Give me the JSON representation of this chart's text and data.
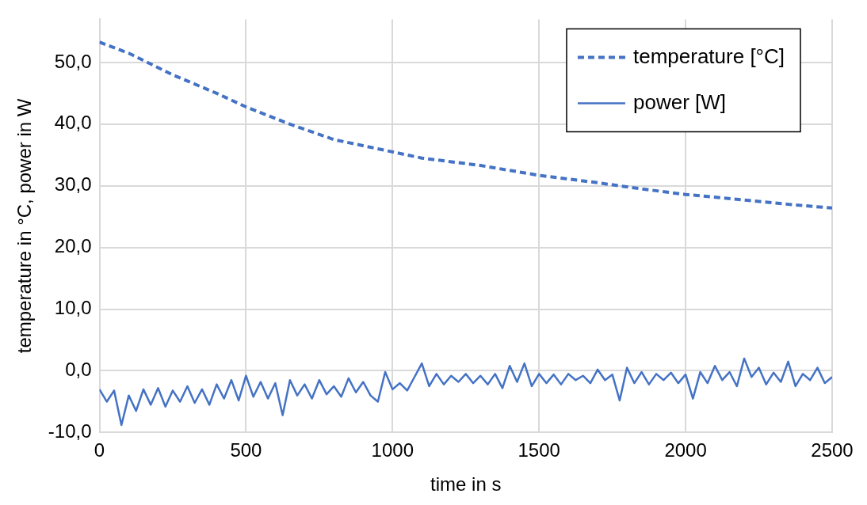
{
  "chart_data": {
    "type": "line",
    "xlabel": "time in s",
    "ylabel": "temperature in °C, power in W",
    "xlim": [
      0,
      2500
    ],
    "xticks": [
      0,
      500,
      1000,
      1500,
      2000,
      2500
    ],
    "ylim": [
      -10,
      57
    ],
    "yticks": [
      {
        "value": -10,
        "label": "-10,0"
      },
      {
        "value": 0,
        "label": "0,0"
      },
      {
        "value": 10,
        "label": "10,0"
      },
      {
        "value": 20,
        "label": "20,0"
      },
      {
        "value": 30,
        "label": "30,0"
      },
      {
        "value": 40,
        "label": "40,0"
      },
      {
        "value": 50,
        "label": "50,0"
      }
    ],
    "grid": true,
    "legend": "top right",
    "marker": "none",
    "series": [
      {
        "name": "temperature [°C]",
        "color": "#4472c4",
        "line_style": "dashed",
        "x": [
          0,
          100,
          250,
          400,
          500,
          650,
          800,
          1000,
          1100,
          1300,
          1500,
          1700,
          1850,
          2000,
          2200,
          2350,
          2500
        ],
        "values": [
          53.3,
          51.5,
          48.0,
          45.0,
          42.8,
          40.0,
          37.5,
          35.5,
          34.5,
          33.3,
          31.7,
          30.5,
          29.5,
          28.6,
          27.7,
          27.0,
          26.4
        ]
      },
      {
        "name": "power [W]",
        "color": "#4472c4",
        "line_style": "solid",
        "x": [
          0,
          25,
          50,
          75,
          100,
          125,
          150,
          175,
          200,
          225,
          250,
          275,
          300,
          325,
          350,
          375,
          400,
          425,
          450,
          475,
          500,
          525,
          550,
          575,
          600,
          625,
          650,
          675,
          700,
          725,
          750,
          775,
          800,
          825,
          850,
          875,
          900,
          925,
          950,
          975,
          1000,
          1025,
          1050,
          1075,
          1100,
          1125,
          1150,
          1175,
          1200,
          1225,
          1250,
          1275,
          1300,
          1325,
          1350,
          1375,
          1400,
          1425,
          1450,
          1475,
          1500,
          1525,
          1550,
          1575,
          1600,
          1625,
          1650,
          1675,
          1700,
          1725,
          1750,
          1775,
          1800,
          1825,
          1850,
          1875,
          1900,
          1925,
          1950,
          1975,
          2000,
          2025,
          2050,
          2075,
          2100,
          2125,
          2150,
          2175,
          2200,
          2225,
          2250,
          2275,
          2300,
          2325,
          2350,
          2375,
          2400,
          2425,
          2450,
          2475,
          2500
        ],
        "values": [
          -3.0,
          -5.0,
          -3.2,
          -8.8,
          -4.0,
          -6.5,
          -3.0,
          -5.5,
          -2.8,
          -5.8,
          -3.2,
          -5.0,
          -2.5,
          -5.2,
          -3.0,
          -5.5,
          -2.2,
          -4.5,
          -1.5,
          -4.8,
          -0.8,
          -4.2,
          -1.8,
          -4.5,
          -2.0,
          -7.2,
          -1.5,
          -4.0,
          -2.2,
          -4.5,
          -1.5,
          -3.8,
          -2.5,
          -4.2,
          -1.2,
          -3.5,
          -1.8,
          -4.0,
          -5.0,
          -0.2,
          -3.0,
          -2.0,
          -3.2,
          -1.0,
          1.2,
          -2.5,
          -0.5,
          -2.2,
          -0.8,
          -1.8,
          -0.5,
          -2.0,
          -0.8,
          -2.2,
          -0.5,
          -2.8,
          0.8,
          -1.8,
          1.2,
          -2.5,
          -0.5,
          -2.0,
          -0.6,
          -2.2,
          -0.5,
          -1.5,
          -0.8,
          -2.0,
          0.2,
          -1.5,
          -0.6,
          -4.8,
          0.5,
          -2.0,
          -0.2,
          -2.2,
          -0.5,
          -1.5,
          -0.3,
          -2.0,
          -0.6,
          -4.5,
          -0.2,
          -2.0,
          0.8,
          -1.5,
          -0.2,
          -2.5,
          2.0,
          -1.0,
          0.5,
          -2.2,
          -0.3,
          -1.8,
          1.5,
          -2.5,
          -0.5,
          -1.5,
          0.5,
          -2.0,
          -1.0
        ]
      }
    ]
  }
}
